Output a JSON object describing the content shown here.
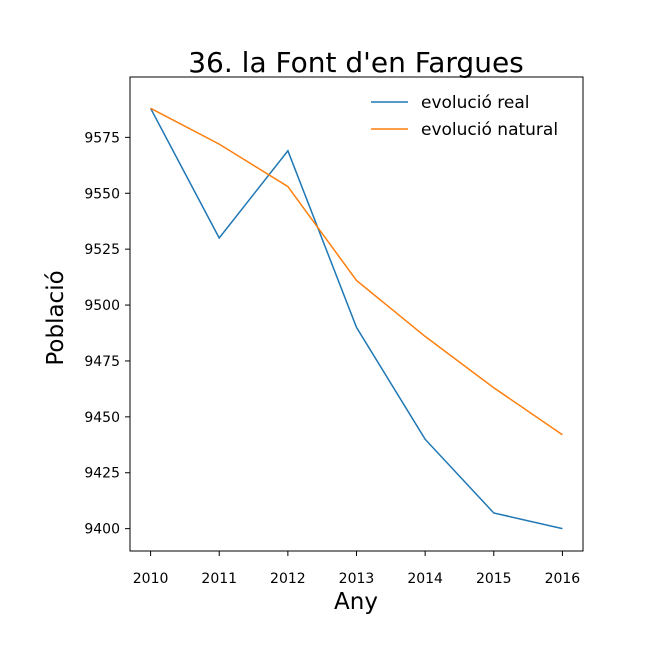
{
  "chart_data": {
    "type": "line",
    "title": "36. la Font d'en Fargues",
    "xlabel": "Any",
    "ylabel": "Població",
    "x": [
      2010,
      2011,
      2012,
      2013,
      2014,
      2015,
      2016
    ],
    "xlim": [
      2009.7,
      2016.3
    ],
    "ylim": [
      9390,
      9602
    ],
    "yticks": [
      9400,
      9425,
      9450,
      9475,
      9500,
      9525,
      9550,
      9575
    ],
    "grid": false,
    "legend_position": "top-right",
    "series": [
      {
        "name": "evolució real",
        "color": "#1f77b4",
        "values": [
          9588,
          9530,
          9569,
          9490,
          9440,
          9407,
          9400
        ]
      },
      {
        "name": "evolució natural",
        "color": "#ff7f0e",
        "values": [
          9588,
          9572,
          9553,
          9511,
          9486,
          9463,
          9442
        ]
      }
    ]
  }
}
